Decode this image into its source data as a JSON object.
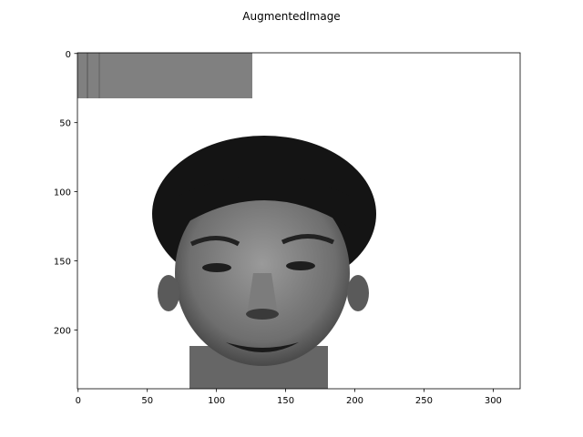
{
  "chart_data": {
    "type": "image",
    "title": "AugmentedImage",
    "xlim": [
      -0.5,
      319.5
    ],
    "ylim": [
      242.5,
      -0.5
    ],
    "xticks": [
      0,
      50,
      100,
      150,
      200,
      250,
      300
    ],
    "yticks": [
      0,
      50,
      100,
      150,
      200
    ]
  }
}
